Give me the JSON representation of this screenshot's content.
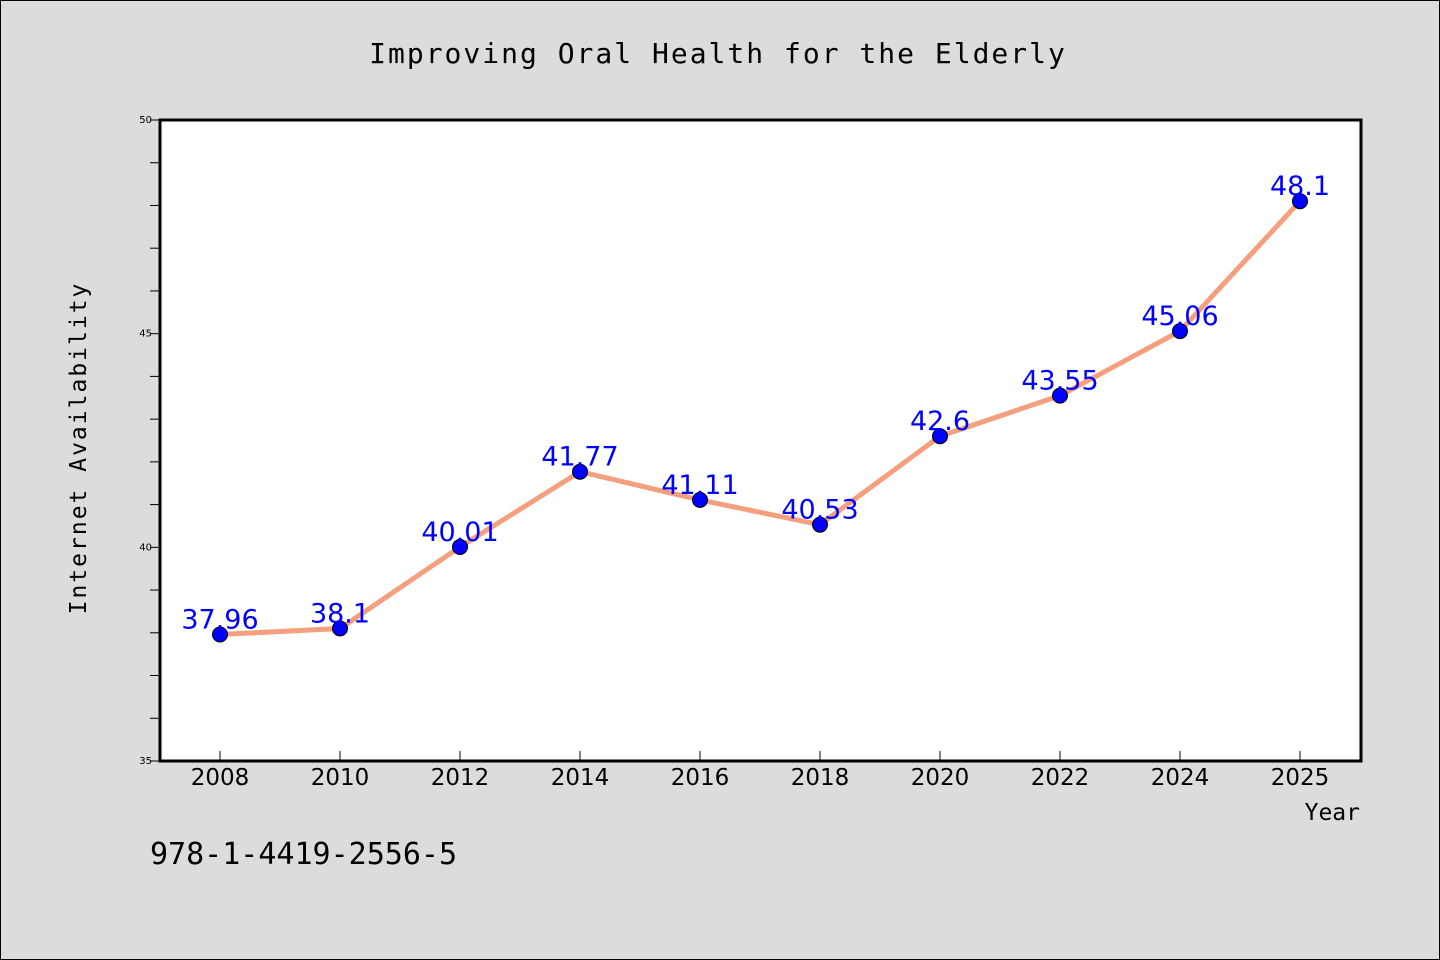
{
  "isbn": "978-1-4419-2556-5",
  "colors": {
    "background": "#dcdcdc",
    "plot_background": "#ffffff",
    "line": "#f4a07e",
    "marker": "#0000ff",
    "label": "#0000ff"
  },
  "chart_data": {
    "type": "line",
    "title": "Improving Oral Health for the Elderly",
    "xlabel": "Year",
    "ylabel": "Internet Availability",
    "categories": [
      "2008",
      "2010",
      "2012",
      "2014",
      "2016",
      "2018",
      "2020",
      "2022",
      "2024",
      "2025"
    ],
    "series": [
      {
        "values": [
          37.96,
          38.1,
          40.01,
          41.77,
          41.11,
          40.53,
          42.6,
          43.55,
          45.06,
          48.1
        ],
        "data_labels": [
          "37.96",
          "38.1",
          "40.01",
          "41.77",
          "41.11",
          "40.53",
          "42.6",
          "43.55",
          "45.06",
          "48.1"
        ]
      }
    ],
    "ylim": [
      35,
      50
    ],
    "y_ticks": [
      "35",
      "40",
      "45",
      "50"
    ],
    "y_minor_step": 1,
    "grid": false,
    "legend": "none"
  }
}
